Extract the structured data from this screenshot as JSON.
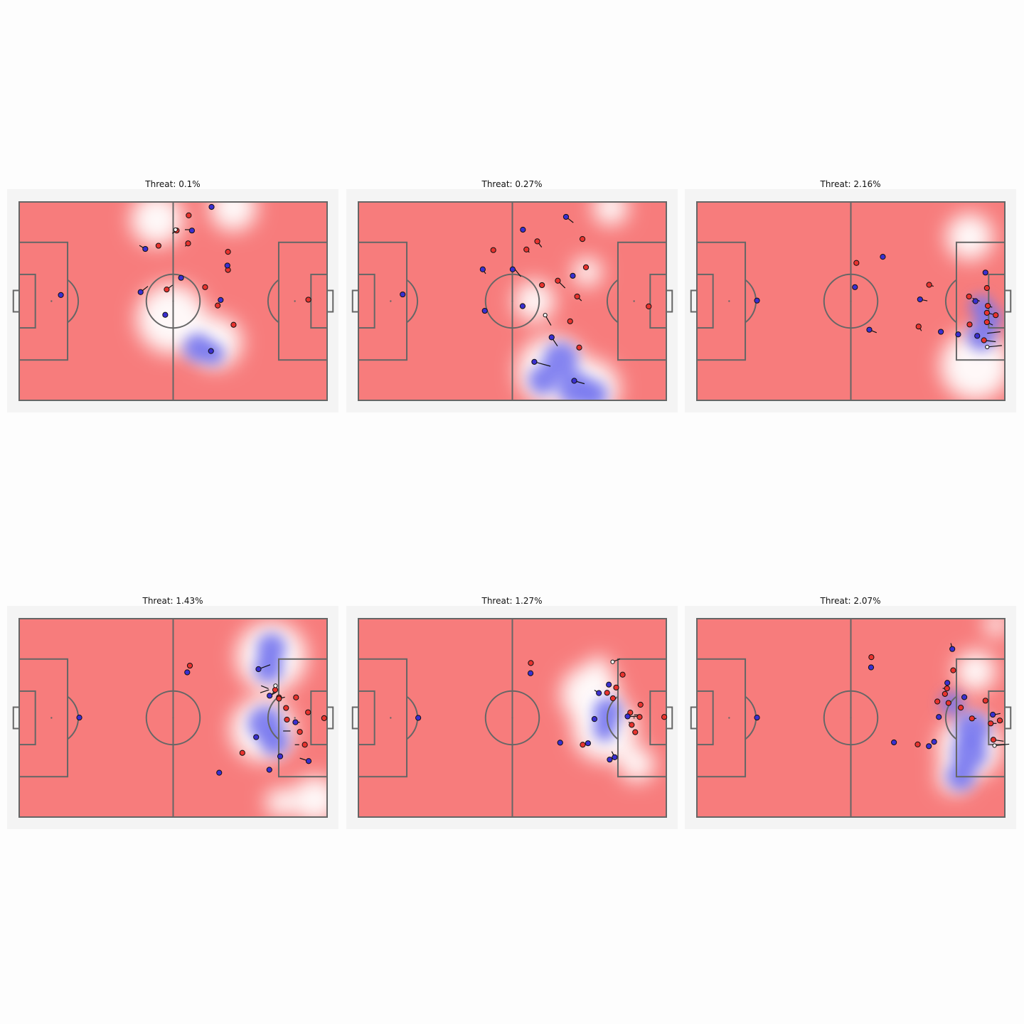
{
  "colors": {
    "pitch_background": "#f4f4f4",
    "threat_low": "#f77c7c",
    "threat_high": "#7878f0",
    "lines": "#666666",
    "attacking_team": "#3a2fd0",
    "defending_team": "#e8332e",
    "ball": "#ffffff",
    "velocity_arrow": "#111111"
  },
  "chart_data": [
    {
      "type": "heatmap",
      "subtype": "football-pitch-threat-map",
      "title": "Threat: 0.1%",
      "xlim": [
        0,
        105
      ],
      "ylim": [
        0,
        68
      ],
      "blue_zones": [
        [
          61,
          18,
          5
        ],
        [
          66,
          16,
          4
        ]
      ],
      "white_zones": [
        [
          52,
          28,
          12
        ],
        [
          67,
          20,
          9
        ],
        [
          47,
          62,
          9
        ],
        [
          73,
          66,
          8
        ]
      ],
      "attackers": [
        [
          14.2,
          36.1
        ],
        [
          41.4,
          37.1
        ],
        [
          49.8,
          29.3
        ],
        [
          55.2,
          42.0
        ],
        [
          58.9,
          58.2
        ],
        [
          43.0,
          51.9
        ],
        [
          71.0,
          46.2
        ],
        [
          68.7,
          34.4
        ],
        [
          65.6,
          66.3
        ],
        [
          65.4,
          16.9
        ]
      ],
      "defenders": [
        [
          98.6,
          34.5
        ],
        [
          50.3,
          38.0
        ],
        [
          63.4,
          38.8
        ],
        [
          67.7,
          32.5
        ],
        [
          73.1,
          25.9
        ],
        [
          71.2,
          50.9
        ],
        [
          47.5,
          53.0
        ],
        [
          71.2,
          44.7
        ],
        [
          57.6,
          53.8
        ],
        [
          53.7,
          58.2
        ],
        [
          57.8,
          63.4
        ]
      ],
      "ball": [
        53.3,
        58.5
      ],
      "arrows": [
        [
          41.4,
          37.1,
          2.5,
          2.0
        ],
        [
          43.0,
          51.9,
          -2.0,
          1.2
        ],
        [
          50.3,
          38.0,
          2.0,
          1.5
        ],
        [
          53.7,
          58.2,
          -1.5,
          -1.0
        ],
        [
          57.6,
          53.8,
          -1.0,
          -1.0
        ],
        [
          59.0,
          58.5,
          -2.5,
          0.0
        ]
      ]
    },
    {
      "type": "heatmap",
      "subtype": "football-pitch-threat-map",
      "title": "Threat: 0.27%",
      "xlim": [
        0,
        105
      ],
      "ylim": [
        0,
        68
      ],
      "blue_zones": [
        [
          63,
          7,
          5
        ],
        [
          74,
          4,
          6
        ],
        [
          80,
          2,
          5
        ],
        [
          69,
          14,
          6
        ]
      ],
      "white_zones": [
        [
          66,
          10,
          12
        ],
        [
          79,
          4,
          10
        ],
        [
          60,
          34,
          7
        ],
        [
          78,
          44,
          5
        ],
        [
          86,
          66,
          6
        ]
      ],
      "attackers": [
        [
          15.1,
          36.3
        ],
        [
          42.4,
          44.9
        ],
        [
          43.1,
          30.7
        ],
        [
          56.1,
          58.5
        ],
        [
          52.6,
          44.9
        ],
        [
          70.8,
          62.9
        ],
        [
          56.0,
          32.3
        ],
        [
          65.9,
          21.6
        ],
        [
          73.6,
          6.7
        ],
        [
          60.0,
          13.2
        ],
        [
          73.1,
          42.7
        ]
      ],
      "defenders": [
        [
          99.0,
          32.2
        ],
        [
          46.0,
          51.5
        ],
        [
          57.3,
          51.7
        ],
        [
          61.0,
          54.5
        ],
        [
          62.6,
          39.5
        ],
        [
          68.0,
          41.0
        ],
        [
          76.4,
          55.3
        ],
        [
          77.6,
          45.6
        ],
        [
          74.6,
          35.6
        ],
        [
          72.2,
          27.1
        ],
        [
          75.3,
          18.1
        ]
      ],
      "ball": [
        63.7,
        29.2
      ],
      "arrows": [
        [
          42.4,
          44.9,
          1.0,
          -1.5
        ],
        [
          53.4,
          44.9,
          2.0,
          -2.5
        ],
        [
          57.3,
          51.7,
          1.0,
          -1.0
        ],
        [
          61.0,
          54.5,
          1.5,
          -2.0
        ],
        [
          68.0,
          41.0,
          2.5,
          -2.5
        ],
        [
          74.6,
          35.6,
          1.5,
          -1.5
        ],
        [
          63.7,
          29.2,
          2.0,
          -3.5
        ],
        [
          65.9,
          21.6,
          2.0,
          -3.0
        ],
        [
          73.6,
          6.7,
          3.5,
          -1.0
        ],
        [
          60.0,
          13.2,
          5.5,
          -1.5
        ],
        [
          70.8,
          62.9,
          2.5,
          -2.0
        ]
      ]
    },
    {
      "type": "heatmap",
      "subtype": "football-pitch-threat-map",
      "title": "Threat: 2.16%",
      "xlim": [
        0,
        105
      ],
      "ylim": [
        0,
        68
      ],
      "blue_zones": [
        [
          100,
          28,
          4
        ],
        [
          97,
          22,
          5
        ],
        [
          97,
          32,
          4
        ]
      ],
      "white_zones": [
        [
          95,
          12,
          12
        ],
        [
          93,
          56,
          8
        ]
      ],
      "attackers": [
        [
          20.5,
          34.2
        ],
        [
          53.9,
          38.8
        ],
        [
          63.4,
          49.2
        ],
        [
          76.1,
          34.6
        ],
        [
          58.8,
          24.2
        ],
        [
          83.2,
          23.5
        ],
        [
          89.1,
          22.6
        ],
        [
          95.6,
          22.1
        ],
        [
          95.0,
          34.0
        ],
        [
          98.4,
          43.8
        ]
      ],
      "defenders": [
        [
          54.4,
          47.1
        ],
        [
          79.2,
          39.6
        ],
        [
          101.9,
          29.2
        ],
        [
          92.8,
          35.6
        ],
        [
          98.9,
          38.5
        ],
        [
          99.2,
          32.4
        ],
        [
          98.9,
          30.0
        ],
        [
          75.6,
          25.3
        ],
        [
          97.9,
          20.6
        ],
        [
          98.9,
          26.8
        ],
        [
          93.0,
          26.0
        ]
      ],
      "ball": [
        99.0,
        18.3
      ],
      "arrows": [
        [
          58.8,
          24.2,
          2.5,
          -1.0
        ],
        [
          75.6,
          25.3,
          1.0,
          -1.5
        ],
        [
          76.1,
          34.6,
          2.5,
          -0.5
        ],
        [
          79.2,
          39.6,
          1.5,
          -0.5
        ],
        [
          93.0,
          26.0,
          0.5,
          0.5
        ],
        [
          94.0,
          35.0,
          2.5,
          -1.0
        ],
        [
          98.9,
          30.0,
          2.0,
          -0.5
        ],
        [
          98.9,
          26.8,
          2.0,
          -1.0
        ],
        [
          97.9,
          20.6,
          4.0,
          -0.5
        ],
        [
          99.2,
          32.4,
          1.5,
          -0.5
        ],
        [
          99.0,
          18.3,
          5.0,
          0.5
        ],
        [
          99.0,
          23.0,
          4.5,
          0.5
        ]
      ]
    },
    {
      "type": "heatmap",
      "subtype": "football-pitch-threat-map",
      "title": "Threat: 1.43%",
      "xlim": [
        0,
        105
      ],
      "ylim": [
        0,
        68
      ],
      "blue_zones": [
        [
          86,
          58,
          5
        ],
        [
          85,
          51,
          5
        ],
        [
          84,
          32,
          6
        ],
        [
          87,
          26,
          5
        ]
      ],
      "white_zones": [
        [
          86,
          55,
          12
        ],
        [
          83,
          30,
          11
        ],
        [
          101,
          6,
          8
        ],
        [
          89,
          5,
          5
        ]
      ],
      "attackers": [
        [
          20.5,
          34.1
        ],
        [
          57.3,
          49.6
        ],
        [
          68.2,
          15.2
        ],
        [
          85.4,
          41.6
        ],
        [
          80.8,
          27.4
        ],
        [
          85.3,
          16.2
        ],
        [
          89.0,
          20.8
        ],
        [
          94.2,
          32.5
        ],
        [
          98.7,
          19.2
        ],
        [
          81.6,
          50.7
        ]
      ],
      "defenders": [
        [
          58.2,
          51.9
        ],
        [
          76.1,
          22.0
        ],
        [
          87.3,
          43.6
        ],
        [
          88.6,
          41.0
        ],
        [
          91.0,
          37.4
        ],
        [
          88.6,
          40.6
        ],
        [
          94.4,
          41.0
        ],
        [
          95.7,
          29.2
        ],
        [
          97.4,
          24.8
        ],
        [
          98.5,
          35.9
        ],
        [
          104.0,
          33.9
        ],
        [
          91.3,
          33.4
        ]
      ],
      "ball": [
        87.4,
        45.0
      ],
      "arrows": [
        [
          81.6,
          50.7,
          4.0,
          1.5
        ],
        [
          85.4,
          41.6,
          2.0,
          1.0
        ],
        [
          85.0,
          44.0,
          -2.5,
          1.0
        ],
        [
          86.2,
          42.0,
          1.0,
          1.5
        ],
        [
          82.2,
          42.6,
          3.0,
          1.0
        ],
        [
          88.6,
          40.6,
          2.0,
          0.5
        ],
        [
          94.2,
          32.5,
          1.5,
          0.0
        ],
        [
          92.5,
          29.5,
          -2.5,
          0.0
        ],
        [
          94.0,
          24.8,
          1.5,
          0.0
        ],
        [
          98.7,
          19.2,
          -3.0,
          1.0
        ]
      ]
    },
    {
      "type": "heatmap",
      "subtype": "football-pitch-threat-map",
      "title": "Threat: 1.27%",
      "xlim": [
        0,
        105
      ],
      "ylim": [
        0,
        68
      ],
      "blue_zones": [
        [
          85,
          36,
          5
        ],
        [
          84,
          30,
          4
        ]
      ],
      "white_zones": [
        [
          79,
          42,
          10
        ],
        [
          84,
          30,
          11
        ],
        [
          95,
          18,
          6
        ],
        [
          82,
          51,
          4
        ]
      ],
      "attackers": [
        [
          20.4,
          34.0
        ],
        [
          58.7,
          49.3
        ],
        [
          68.8,
          25.5
        ],
        [
          78.3,
          25.3
        ],
        [
          80.5,
          33.6
        ],
        [
          85.4,
          45.4
        ],
        [
          91.8,
          34.5
        ],
        [
          85.7,
          19.7
        ],
        [
          82.0,
          42.5
        ],
        [
          87.4,
          20.5
        ]
      ],
      "defenders": [
        [
          58.8,
          52.8
        ],
        [
          76.5,
          24.8
        ],
        [
          86.8,
          40.7
        ],
        [
          87.9,
          44.4
        ],
        [
          90.1,
          48.8
        ],
        [
          92.7,
          35.8
        ],
        [
          93.2,
          31.6
        ],
        [
          94.4,
          29.1
        ],
        [
          96.2,
          38.5
        ],
        [
          95.9,
          34.3
        ],
        [
          104.3,
          34.3
        ],
        [
          84.8,
          42.6
        ]
      ],
      "ball": [
        86.7,
        53.2
      ],
      "arrows": [
        [
          86.7,
          53.2,
          2.5,
          1.0
        ],
        [
          82.0,
          42.5,
          -1.5,
          1.0
        ],
        [
          92.0,
          34.5,
          3.0,
          0.0
        ],
        [
          93.2,
          31.6,
          -1.0,
          1.0
        ],
        [
          94.0,
          35.0,
          1.5,
          0.0
        ],
        [
          87.4,
          20.5,
          -1.0,
          2.0
        ]
      ]
    },
    {
      "type": "heatmap",
      "subtype": "football-pitch-threat-map",
      "title": "Threat: 2.07%",
      "xlim": [
        0,
        105
      ],
      "ylim": [
        0,
        68
      ],
      "blue_zones": [
        [
          90,
          14,
          5
        ],
        [
          93,
          22,
          6
        ],
        [
          94,
          30,
          6
        ],
        [
          87,
          39,
          4
        ]
      ],
      "white_zones": [
        [
          95,
          50,
          7
        ],
        [
          93,
          24,
          11
        ],
        [
          88,
          14,
          6
        ],
        [
          102,
          66,
          4
        ]
      ],
      "attackers": [
        [
          20.5,
          34.1
        ],
        [
          59.4,
          51.3
        ],
        [
          67.2,
          25.6
        ],
        [
          79.1,
          24.3
        ],
        [
          82.5,
          34.3
        ],
        [
          87.1,
          57.6
        ],
        [
          85.4,
          46.0
        ],
        [
          80.9,
          25.8
        ],
        [
          91.2,
          41.1
        ],
        [
          100.9,
          35.1
        ]
      ],
      "defenders": [
        [
          59.5,
          54.8
        ],
        [
          75.3,
          24.9
        ],
        [
          82.0,
          39.6
        ],
        [
          85.3,
          44.1
        ],
        [
          87.4,
          50.3
        ],
        [
          90.0,
          37.5
        ],
        [
          93.8,
          33.8
        ],
        [
          98.4,
          39.9
        ],
        [
          100.2,
          32.1
        ],
        [
          103.3,
          33.1
        ],
        [
          101.1,
          26.5
        ],
        [
          84.6,
          42.2
        ],
        [
          85.8,
          39.1
        ]
      ],
      "ball": [
        101.5,
        24.5
      ],
      "arrows": [
        [
          101.5,
          24.5,
          5.0,
          0.5
        ],
        [
          101.1,
          26.5,
          3.5,
          -0.5
        ],
        [
          100.2,
          32.1,
          2.0,
          0.0
        ],
        [
          101.0,
          35.0,
          2.5,
          0.5
        ],
        [
          103.3,
          33.1,
          1.0,
          -0.5
        ],
        [
          93.8,
          33.8,
          1.5,
          0.0
        ],
        [
          87.1,
          57.6,
          -0.5,
          2.0
        ],
        [
          85.3,
          44.1,
          -1.5,
          0.0
        ]
      ]
    }
  ]
}
